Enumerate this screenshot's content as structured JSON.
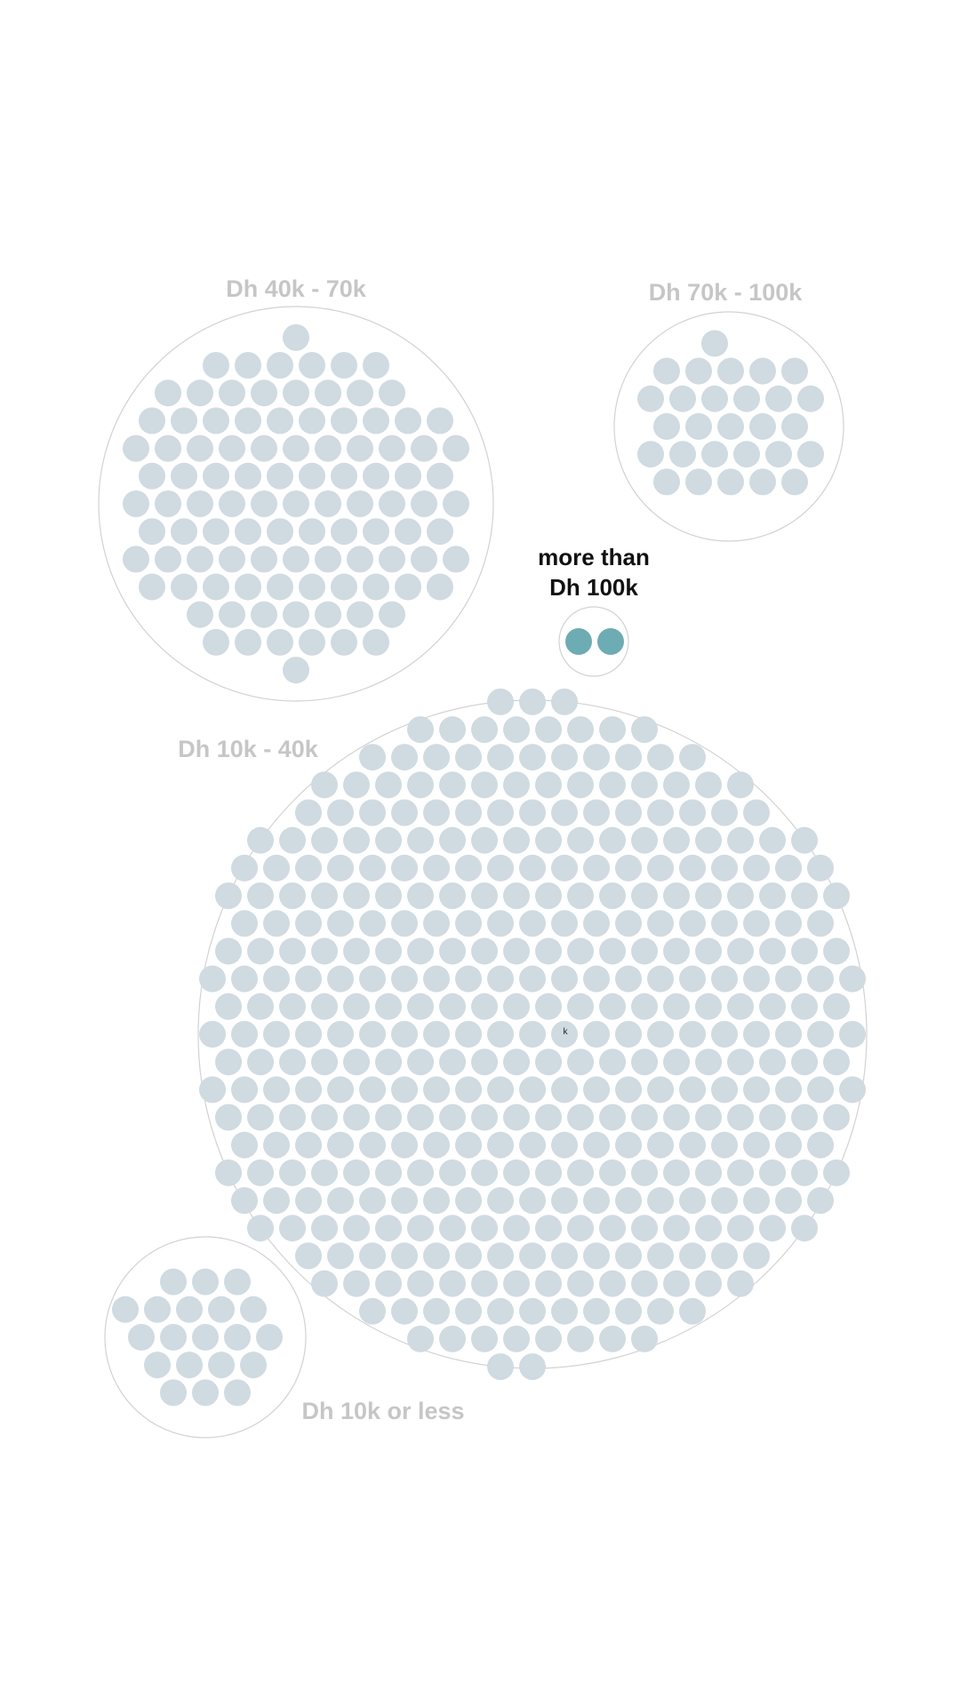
{
  "chart_data": {
    "type": "packed-circles",
    "unit": "people",
    "highlight_color": "#6eacb4",
    "muted_color": "#d0dae1",
    "groups": [
      {
        "id": "g40-70",
        "label": "Dh 40k - 70k",
        "count": 102,
        "highlight": false
      },
      {
        "id": "g70-100",
        "label": "Dh 70k - 100k",
        "count": 28,
        "highlight": false
      },
      {
        "id": "g100plus",
        "label_lines": [
          "more than",
          "Dh 100k"
        ],
        "count": 2,
        "highlight": true
      },
      {
        "id": "g10-40",
        "label": "Dh 10k - 40k",
        "count": 396,
        "highlight": false
      },
      {
        "id": "g10less",
        "label": "Dh 10k or less",
        "count": 20,
        "highlight": false
      }
    ],
    "center_mark": "k"
  }
}
